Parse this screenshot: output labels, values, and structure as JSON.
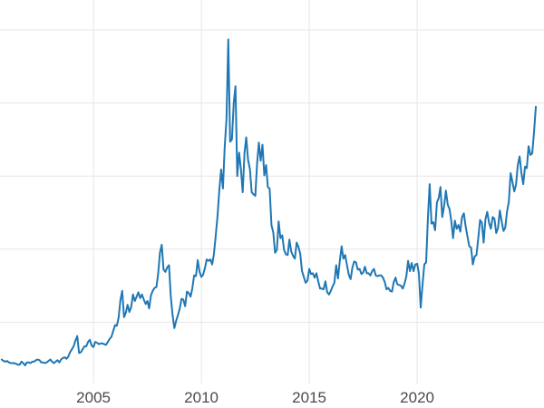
{
  "chart_data": {
    "type": "line",
    "title": "",
    "legend": false,
    "grid": true,
    "x_axis": {
      "tick_labels": [
        "2005",
        "2010",
        "2015",
        "2020"
      ],
      "tick_positions": [
        2005,
        2010,
        2015,
        2020
      ],
      "range": [
        2000.67,
        2025.88
      ]
    },
    "y_axis": {
      "tick_labels": [],
      "gridline_values": [
        10,
        20,
        30,
        40,
        50
      ],
      "range": [
        0,
        54.1
      ]
    },
    "series": {
      "start": "2000-10",
      "frequency": "monthly",
      "values": [
        4.9,
        4.7,
        4.6,
        4.7,
        4.5,
        4.4,
        4.4,
        4.4,
        4.3,
        4.2,
        4.2,
        4.6,
        4.4,
        4.1,
        4.5,
        4.5,
        4.4,
        4.6,
        4.6,
        4.8,
        4.9,
        4.8,
        4.5,
        4.5,
        4.4,
        4.5,
        4.7,
        4.9,
        4.6,
        4.4,
        4.6,
        4.8,
        4.5,
        4.9,
        5.1,
        5.2,
        5.0,
        5.3,
        5.9,
        6.3,
        6.7,
        7.5,
        8.1,
        5.8,
        5.9,
        6.3,
        6.7,
        6.7,
        7.3,
        7.6,
        6.8,
        6.6,
        7.3,
        7.2,
        7.0,
        7.1,
        7.1,
        7.0,
        6.9,
        7.3,
        7.7,
        8.0,
        8.8,
        9.6,
        9.5,
        10.6,
        13.0,
        14.3,
        10.7,
        11.3,
        12.4,
        11.4,
        12.1,
        13.8,
        12.9,
        13.5,
        14.1,
        13.3,
        13.8,
        13.1,
        12.5,
        12.9,
        11.9,
        13.7,
        14.3,
        14.7,
        14.8,
        16.7,
        19.5,
        20.6,
        17.2,
        16.9,
        17.5,
        17.8,
        13.7,
        11.0,
        9.2,
        10.2,
        11.0,
        11.9,
        13.2,
        13.1,
        12.2,
        14.2,
        14.0,
        13.5,
        14.6,
        16.4,
        16.3,
        18.5,
        16.9,
        16.2,
        16.5,
        17.4,
        18.6,
        18.4,
        18.6,
        17.9,
        19.3,
        21.8,
        24.5,
        28.1,
        30.9,
        28.3,
        33.9,
        37.8,
        48.7,
        34.7,
        35.0,
        40.0,
        42.3,
        30.0,
        33.2,
        31.0,
        27.8,
        33.2,
        35.3,
        32.2,
        31.0,
        27.8,
        27.5,
        27.3,
        31.6,
        34.6,
        32.1,
        34.3,
        30.1,
        31.5,
        28.5,
        28.3,
        23.3,
        22.3,
        19.5,
        19.9,
        23.8,
        21.5,
        21.9,
        19.9,
        19.3,
        19.2,
        21.3,
        19.7,
        19.1,
        18.7,
        20.9,
        20.3,
        19.4,
        17.0,
        16.2,
        15.4,
        15.7,
        17.3,
        16.6,
        16.7,
        16.1,
        16.7,
        15.6,
        14.6,
        14.6,
        14.5,
        15.6,
        14.1,
        13.8,
        14.3,
        14.9,
        15.4,
        17.8,
        16.0,
        18.4,
        20.4,
        18.7,
        19.2,
        17.8,
        16.5,
        15.9,
        17.5,
        18.3,
        18.2,
        17.2,
        17.3,
        16.6,
        16.8,
        17.6,
        16.7,
        16.7,
        16.4,
        17.0,
        17.3,
        16.4,
        16.3,
        16.4,
        16.4,
        16.1,
        15.5,
        14.5,
        14.7,
        14.3,
        14.2,
        15.5,
        16.1,
        15.2,
        15.1,
        15.0,
        14.6,
        15.3,
        16.3,
        18.4,
        17.0,
        18.1,
        17.0,
        17.9,
        18.0,
        16.7,
        12.0,
        15.1,
        17.9,
        18.2,
        24.4,
        28.9,
        23.5,
        23.7,
        22.6,
        26.4,
        27.0,
        28.5,
        24.4,
        25.9,
        28.0,
        26.1,
        25.5,
        23.9,
        21.5,
        23.9,
        22.8,
        23.3,
        22.4,
        24.4,
        24.9,
        23.1,
        21.7,
        20.4,
        20.2,
        17.9,
        19.0,
        19.2,
        21.5,
        24.0,
        23.6,
        20.9,
        24.1,
        25.1,
        23.6,
        22.8,
        24.4,
        24.2,
        22.2,
        22.9,
        25.3,
        23.8,
        22.5,
        22.9,
        25.1,
        26.5,
        30.4,
        29.2,
        27.9,
        28.8,
        31.5,
        32.7,
        30.4,
        28.9,
        31.3,
        31.1,
        34.1,
        32.9,
        33.1,
        36.0,
        39.5
      ]
    },
    "colors": {
      "line": "#1f77b4",
      "grid": "#e6e6e6",
      "tick_label": "#4a4a4a",
      "background": "#ffffff"
    }
  }
}
